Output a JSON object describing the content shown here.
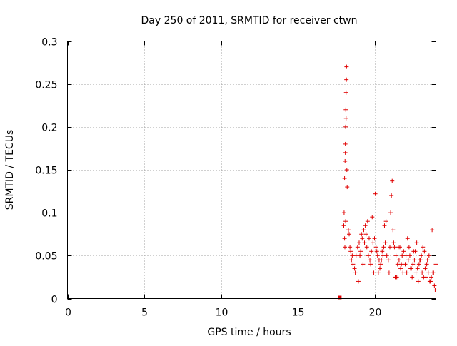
{
  "chart_data": {
    "type": "scatter",
    "title": "Day 250 of 2011, SRMTID for receiver ctwn",
    "xlabel": "GPS time / hours",
    "ylabel": "SRMTID / TECUs",
    "xlim": [
      0,
      24
    ],
    "ylim": [
      0,
      0.3
    ],
    "xticks": [
      0,
      5,
      10,
      15,
      20
    ],
    "xtick_labels": [
      "0",
      "5",
      "10",
      "15",
      "20"
    ],
    "yticks": [
      0,
      0.05,
      0.1,
      0.15,
      0.2,
      0.25,
      0.3
    ],
    "ytick_labels": [
      "0",
      "0.05",
      "0.1",
      "0.15",
      "0.2",
      "0.25",
      "0.3"
    ],
    "grid": true,
    "marker": "+",
    "color": "#e00000",
    "series": [
      {
        "name": "SRMTID",
        "x": [
          17.75,
          17.76,
          18.0,
          18.02,
          18.05,
          18.08,
          18.1,
          18.12,
          18.13,
          18.15,
          18.17,
          18.18,
          18.2,
          18.22,
          18.1,
          18.15,
          18.05,
          18.07,
          18.12,
          18.3,
          18.4,
          18.45,
          18.5,
          18.6,
          18.7,
          18.8,
          18.9,
          19.0,
          19.1,
          19.2,
          19.3,
          19.4,
          19.5,
          19.6,
          19.7,
          19.8,
          19.9,
          20.0,
          20.1,
          20.2,
          20.3,
          20.4,
          20.5,
          20.6,
          20.7,
          20.8,
          20.9,
          21.0,
          21.05,
          21.1,
          21.15,
          21.2,
          21.3,
          21.4,
          21.5,
          21.6,
          21.7,
          21.8,
          21.9,
          22.0,
          22.1,
          22.2,
          22.3,
          22.4,
          22.5,
          22.6,
          22.7,
          22.8,
          22.9,
          23.0,
          23.1,
          23.2,
          23.3,
          23.4,
          23.5,
          23.6,
          23.7,
          23.8,
          23.9,
          24.0,
          18.35,
          18.55,
          18.75,
          18.95,
          19.15,
          19.35,
          19.55,
          19.75,
          19.95,
          20.15,
          20.35,
          20.55,
          20.75,
          20.95,
          21.25,
          21.45,
          21.65,
          21.85,
          22.05,
          22.25,
          22.45,
          22.65,
          22.85,
          23.05,
          23.25,
          23.45,
          23.65,
          23.85,
          19.25,
          19.45,
          19.65,
          20.25,
          20.45,
          20.65,
          21.35,
          21.55,
          22.15,
          22.35,
          22.55,
          23.15,
          23.35,
          23.55,
          23.75,
          23.95,
          19.05,
          19.85,
          20.05,
          21.75,
          22.75,
          22.95
        ],
        "y": [
          0.0,
          0.0,
          0.085,
          0.1,
          0.14,
          0.16,
          0.18,
          0.2,
          0.22,
          0.24,
          0.255,
          0.27,
          0.15,
          0.13,
          0.17,
          0.21,
          0.07,
          0.06,
          0.09,
          0.08,
          0.06,
          0.055,
          0.045,
          0.04,
          0.035,
          0.05,
          0.06,
          0.065,
          0.055,
          0.07,
          0.08,
          0.085,
          0.06,
          0.05,
          0.045,
          0.055,
          0.065,
          0.07,
          0.06,
          0.05,
          0.045,
          0.04,
          0.055,
          0.06,
          0.065,
          0.05,
          0.045,
          0.06,
          0.1,
          0.12,
          0.137,
          0.08,
          0.06,
          0.05,
          0.04,
          0.045,
          0.035,
          0.05,
          0.055,
          0.04,
          0.03,
          0.045,
          0.05,
          0.035,
          0.04,
          0.045,
          0.03,
          0.035,
          0.04,
          0.045,
          0.03,
          0.025,
          0.035,
          0.04,
          0.03,
          0.02,
          0.025,
          0.03,
          0.015,
          0.04,
          0.075,
          0.05,
          0.03,
          0.02,
          0.075,
          0.065,
          0.09,
          0.04,
          0.03,
          0.055,
          0.035,
          0.05,
          0.09,
          0.03,
          0.065,
          0.025,
          0.06,
          0.03,
          0.05,
          0.06,
          0.025,
          0.055,
          0.02,
          0.05,
          0.055,
          0.045,
          0.02,
          0.03,
          0.04,
          0.075,
          0.07,
          0.03,
          0.045,
          0.085,
          0.025,
          0.06,
          0.07,
          0.035,
          0.055,
          0.06,
          0.025,
          0.05,
          0.08,
          0.01,
          0.05,
          0.095,
          0.122,
          0.04,
          0.065,
          0.045
        ]
      }
    ]
  }
}
